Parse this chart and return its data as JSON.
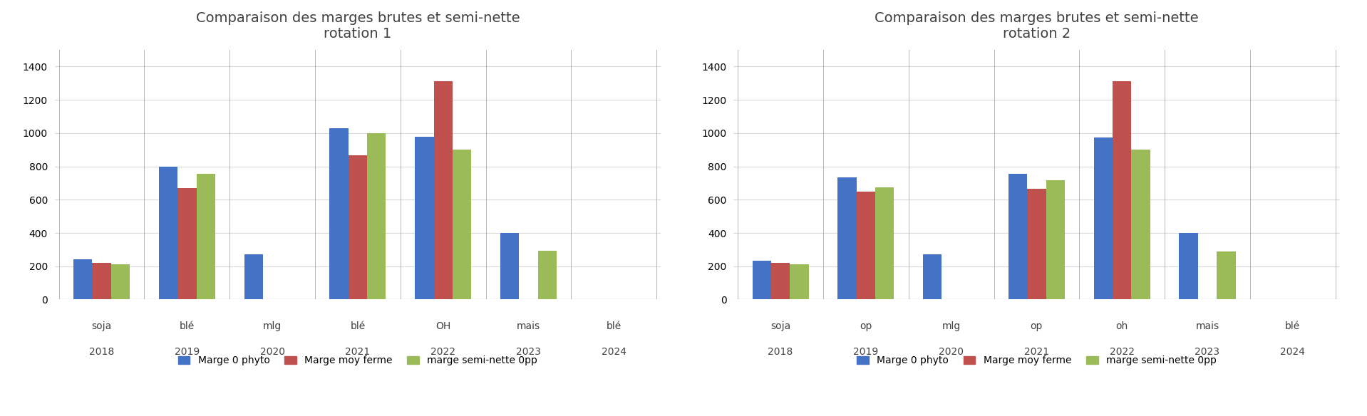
{
  "chart1": {
    "title": "Comparaison des marges brutes et semi-nette\nrotation 1",
    "cat_labels": [
      "soja",
      "blé",
      "mlg",
      "blé",
      "OH",
      "mais",
      "blé"
    ],
    "year_labels": [
      "2018",
      "2019",
      "2020",
      "2021",
      "2022",
      "2023",
      "2024"
    ],
    "series": {
      "Marge 0 phyto": [
        240,
        800,
        270,
        1030,
        980,
        400,
        0
      ],
      "Marge moy ferme": [
        220,
        670,
        0,
        865,
        1310,
        0,
        0
      ],
      "marge semi-nette 0pp": [
        210,
        755,
        0,
        1000,
        900,
        295,
        0
      ]
    }
  },
  "chart2": {
    "title": "Comparaison des marges brutes et semi-nette\nrotation 2",
    "cat_labels": [
      "soja",
      "op",
      "mlg",
      "op",
      "oh",
      "mais",
      "blé"
    ],
    "year_labels": [
      "2018",
      "2019",
      "2020",
      "2021",
      "2022",
      "2023",
      "2024"
    ],
    "series": {
      "Marge 0 phyto": [
        235,
        735,
        270,
        755,
        975,
        400,
        0
      ],
      "Marge moy ferme": [
        220,
        648,
        0,
        665,
        1310,
        0,
        0
      ],
      "marge semi-nette 0pp": [
        210,
        675,
        0,
        715,
        900,
        290,
        0
      ]
    }
  },
  "colors": {
    "Marge 0 phyto": "#4472C4",
    "Marge moy ferme": "#C0504D",
    "marge semi-nette 0pp": "#9BBB59"
  },
  "ylim": [
    0,
    1500
  ],
  "yticks": [
    0,
    200,
    400,
    600,
    800,
    1000,
    1200,
    1400
  ],
  "bar_width": 0.22,
  "background_color": "#FFFFFF",
  "grid_color": "#D9D9D9",
  "separator_color": "#AAAAAA",
  "title_fontsize": 14,
  "tick_fontsize": 10,
  "year_fontsize": 10,
  "legend_fontsize": 10
}
